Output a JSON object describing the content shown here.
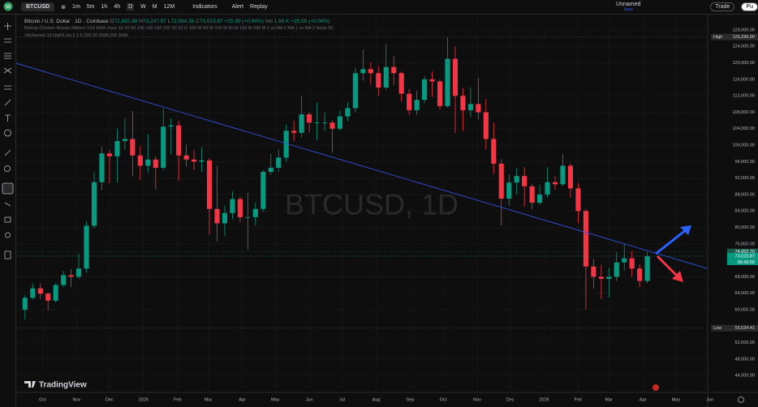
{
  "toolbar": {
    "symbol": "BTCUSD",
    "intervals": [
      "1m",
      "5m",
      "1h",
      "4h",
      "D",
      "W",
      "M",
      "12M"
    ],
    "indicators": "Indicators",
    "alert": "Alert",
    "replay": "Replay",
    "layout": "Unnamed",
    "layout_status": "Save",
    "trade": "Trade",
    "publish": "Pu"
  },
  "legend": {
    "title": "Bitcoin / U.S. Dollar · 1D · Coinbase",
    "ohlc": [
      {
        "key": "O",
        "value": "72,897.88"
      },
      {
        "key": "H",
        "value": "73,247.97"
      },
      {
        "key": "L",
        "value": "72,564.35"
      },
      {
        "key": "C",
        "value": "73,023.87"
      }
    ],
    "change": "+25.99 (+0.04%)",
    "volume_key": "Vol",
    "volume": "1.69 K",
    "volume_change": "+25.99 (+0.04%)",
    "indicators": [
      "Bishop Chicken Biryani Ribbon V14 EMA close 10 20 50 200 100 150 200 30 20 G 100 W 50 W 200 M 50 M 100 M 200 M 1 vs MA 2 MA 1 vs MA 2 None 50",
      "SItchannel 10 High/Low 5 1.6 200 50 SMA 200 SMA"
    ]
  },
  "branding": "TradingView",
  "chart_data": {
    "type": "candlestick",
    "watermark": "BTCUSD, 1D",
    "up_color": "#089981",
    "down_color": "#f23645",
    "grid": true,
    "x": [
      3,
      10,
      17,
      24,
      31,
      38,
      45,
      52,
      59,
      66,
      73,
      80,
      87,
      94,
      101,
      108,
      115,
      122,
      129,
      136,
      143,
      150,
      157,
      164,
      171,
      178,
      185,
      192,
      199,
      206,
      213,
      220,
      227,
      234,
      241,
      248,
      255,
      262,
      269,
      276,
      283,
      290,
      297,
      304,
      311,
      318,
      325,
      332,
      339,
      346,
      353,
      360,
      367,
      374,
      381,
      388,
      395,
      402,
      409,
      416,
      423,
      430,
      437,
      444,
      451,
      458,
      465,
      472,
      479,
      486,
      493,
      500,
      507,
      514,
      521,
      528,
      535,
      542,
      549,
      556,
      563,
      570
    ],
    "open": [
      60000,
      62900,
      65200,
      63900,
      62200,
      66000,
      68400,
      68000,
      70000,
      80400,
      91000,
      98000,
      97300,
      101000,
      101500,
      97500,
      95000,
      96500,
      94500,
      104500,
      104800,
      97500,
      96500,
      96000,
      96300,
      84500,
      81000,
      83500,
      86900,
      82500,
      82500,
      84500,
      93500,
      94500,
      97000,
      103500,
      103000,
      107500,
      105500,
      105500,
      105500,
      104000,
      107000,
      109000,
      117500,
      118500,
      117500,
      114000,
      119000,
      117500,
      112500,
      108500,
      111000,
      116000,
      115500,
      109500,
      121000,
      112000,
      108500,
      110000,
      108000,
      101500,
      95500,
      87000,
      90900,
      92500,
      90000,
      86000,
      88000,
      91000,
      90500,
      95000,
      89500,
      84000,
      70500,
      68000,
      67500,
      68000,
      71500,
      72500,
      70000,
      67000
    ],
    "high": [
      63500,
      66400,
      66400,
      64200,
      66400,
      69400,
      69900,
      73600,
      81500,
      93400,
      99600,
      98800,
      104000,
      106500,
      108300,
      99900,
      102700,
      97300,
      109000,
      106500,
      106000,
      100100,
      98800,
      99500,
      96900,
      95000,
      85300,
      88800,
      87500,
      88500,
      86100,
      94000,
      97900,
      99000,
      105000,
      106000,
      111900,
      108000,
      110400,
      108000,
      106000,
      108500,
      110500,
      118800,
      123200,
      120200,
      119300,
      124500,
      121700,
      117900,
      113600,
      113300,
      116800,
      117900,
      115900,
      126300,
      124000,
      113900,
      114000,
      116400,
      111200,
      105500,
      96600,
      92900,
      94500,
      94600,
      90600,
      90400,
      94600,
      92500,
      97900,
      95500,
      90800,
      84500,
      72300,
      70900,
      70200,
      74000,
      76000,
      74200,
      71000,
      74100
    ],
    "low": [
      57600,
      62400,
      62600,
      59800,
      61800,
      65500,
      65500,
      67500,
      69000,
      79800,
      89000,
      90800,
      91000,
      98800,
      92500,
      91500,
      93300,
      89300,
      94000,
      97800,
      91300,
      94900,
      94000,
      93500,
      78200,
      76600,
      78000,
      82000,
      81200,
      74500,
      80500,
      83800,
      92800,
      93500,
      96000,
      101000,
      102000,
      103100,
      101200,
      103400,
      98200,
      103500,
      105800,
      108000,
      115700,
      114700,
      112000,
      113500,
      114700,
      110600,
      107300,
      107300,
      110200,
      111800,
      108600,
      109200,
      103000,
      103500,
      106800,
      106300,
      98900,
      93000,
      80500,
      85300,
      88000,
      85100,
      84400,
      85500,
      87200,
      89200,
      90000,
      87300,
      81000,
      60000,
      65100,
      62600,
      63000,
      67000,
      69500,
      68000,
      65500,
      66500
    ],
    "close": [
      62900,
      65200,
      63900,
      62200,
      66000,
      68400,
      68000,
      70000,
      80400,
      91000,
      98000,
      97300,
      101000,
      101500,
      97500,
      95000,
      96500,
      94500,
      104500,
      104800,
      97500,
      96500,
      96000,
      96300,
      84500,
      81000,
      83500,
      86900,
      82500,
      82500,
      84500,
      93500,
      94500,
      97000,
      103500,
      103000,
      107500,
      105500,
      105500,
      105500,
      104000,
      107000,
      109000,
      117500,
      118500,
      117500,
      114000,
      119000,
      117500,
      112500,
      108500,
      111000,
      116000,
      115500,
      109500,
      121000,
      112000,
      108500,
      110000,
      108000,
      101500,
      95500,
      87000,
      90900,
      92500,
      90000,
      86000,
      88000,
      91000,
      90500,
      95000,
      89500,
      84000,
      70500,
      68000,
      67500,
      68000,
      71500,
      72500,
      70000,
      67000,
      73000
    ],
    "xlim": [
      -5,
      625
    ],
    "ylim": [
      39900,
      131350
    ],
    "xticks": [
      {
        "value": 19,
        "label": "Oct"
      },
      {
        "value": 50,
        "label": "Nov"
      },
      {
        "value": 80,
        "label": "Dec"
      },
      {
        "value": 111,
        "label": "2025"
      },
      {
        "value": 142,
        "label": "Feb"
      },
      {
        "value": 170,
        "label": "Mar"
      },
      {
        "value": 201,
        "label": "Apr"
      },
      {
        "value": 231,
        "label": "May"
      },
      {
        "value": 262,
        "label": "Jun"
      },
      {
        "value": 292,
        "label": "Jul"
      },
      {
        "value": 323,
        "label": "Aug"
      },
      {
        "value": 354,
        "label": "Sep"
      },
      {
        "value": 384,
        "label": "Oct"
      },
      {
        "value": 415,
        "label": "Nov"
      },
      {
        "value": 445,
        "label": "Dec"
      },
      {
        "value": 476,
        "label": "2026"
      },
      {
        "value": 507,
        "label": "Feb"
      },
      {
        "value": 535,
        "label": "Mar"
      },
      {
        "value": 566,
        "label": "Apr"
      },
      {
        "value": 596,
        "label": "May"
      },
      {
        "value": 627,
        "label": "Jun"
      }
    ],
    "yticks": [
      {
        "value": 128000,
        "label": "128,000.00"
      },
      {
        "value": 124000,
        "label": "124,000.00"
      },
      {
        "value": 120000,
        "label": "120,000.00"
      },
      {
        "value": 116000,
        "label": "116,000.00"
      },
      {
        "value": 112000,
        "label": "112,000.00"
      },
      {
        "value": 108000,
        "label": "108,000.00"
      },
      {
        "value": 104000,
        "label": "104,000.00"
      },
      {
        "value": 100000,
        "label": "100,000.00"
      },
      {
        "value": 96000,
        "label": "96,000.00"
      },
      {
        "value": 92000,
        "label": "92,000.00"
      },
      {
        "value": 88000,
        "label": "88,000.00"
      },
      {
        "value": 84000,
        "label": "84,000.00"
      },
      {
        "value": 80000,
        "label": "80,000.00"
      },
      {
        "value": 76000,
        "label": "76,000.00"
      },
      {
        "value": 68000,
        "label": "68,000.00"
      },
      {
        "value": 64000,
        "label": "64,000.00"
      },
      {
        "value": 60000,
        "label": "60,000.00"
      },
      {
        "value": 52000,
        "label": "52,000.00"
      },
      {
        "value": 48000,
        "label": "48,000.00"
      },
      {
        "value": 44000,
        "label": "44,000.00"
      }
    ],
    "markers": [
      {
        "name": "High",
        "value": 126296,
        "value_label": "126,296.00"
      },
      {
        "name": "Low",
        "value": 55534.41,
        "value_label": "55,534.41"
      }
    ],
    "price_labels": [
      {
        "value": 74052.7,
        "value_label": "74,052.70",
        "color": "#1e5a4e"
      },
      {
        "value": 73023.87,
        "value_label": "73,023.87",
        "color": "#089981"
      }
    ],
    "countdown": "06:43:56",
    "trendline": {
      "color": "#2f4fd8",
      "x": [
        -5,
        625
      ],
      "y": [
        119900,
        70000
      ]
    }
  }
}
